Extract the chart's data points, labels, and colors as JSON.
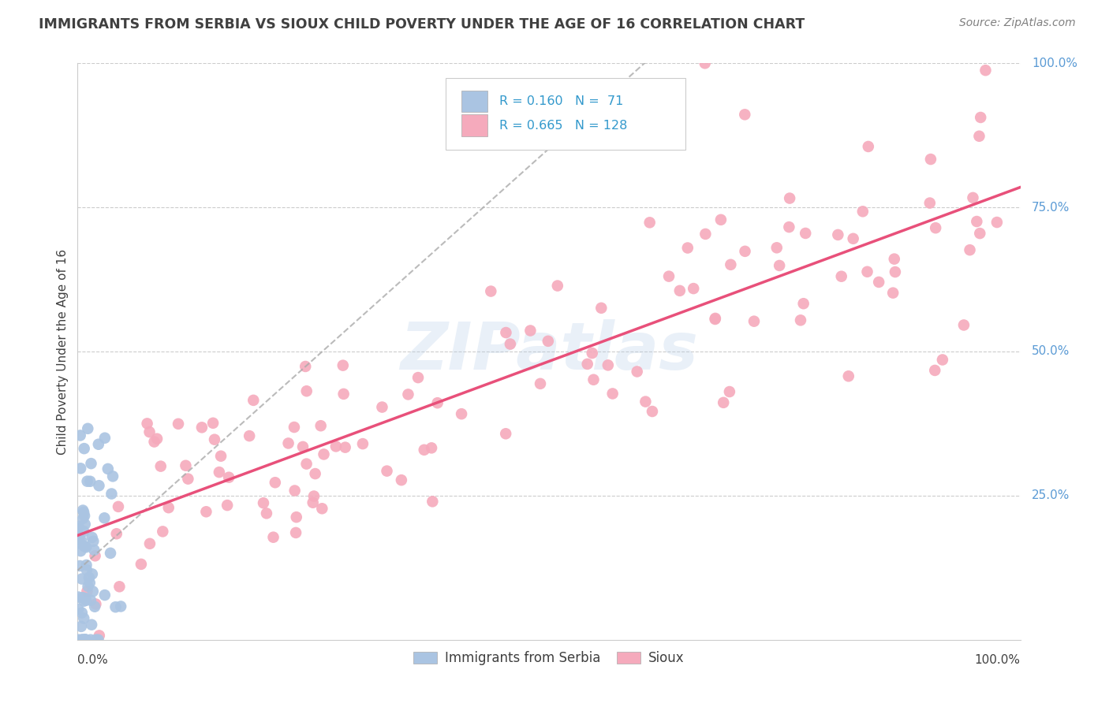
{
  "title": "IMMIGRANTS FROM SERBIA VS SIOUX CHILD POVERTY UNDER THE AGE OF 16 CORRELATION CHART",
  "source": "Source: ZipAtlas.com",
  "ylabel": "Child Poverty Under the Age of 16",
  "legend_serbia_R": "0.160",
  "legend_serbia_N": "71",
  "legend_sioux_R": "0.665",
  "legend_sioux_N": "128",
  "serbia_color": "#aac4e2",
  "sioux_color": "#f5aabc",
  "serbia_line_color": "#aaaaaa",
  "sioux_line_color": "#e8507a",
  "background_color": "#ffffff",
  "grid_color": "#cccccc",
  "watermark": "ZIPatlas",
  "watermark_color": "#b8cfe8",
  "right_label_color": "#5b9bd5",
  "title_color": "#404040",
  "source_color": "#808080"
}
